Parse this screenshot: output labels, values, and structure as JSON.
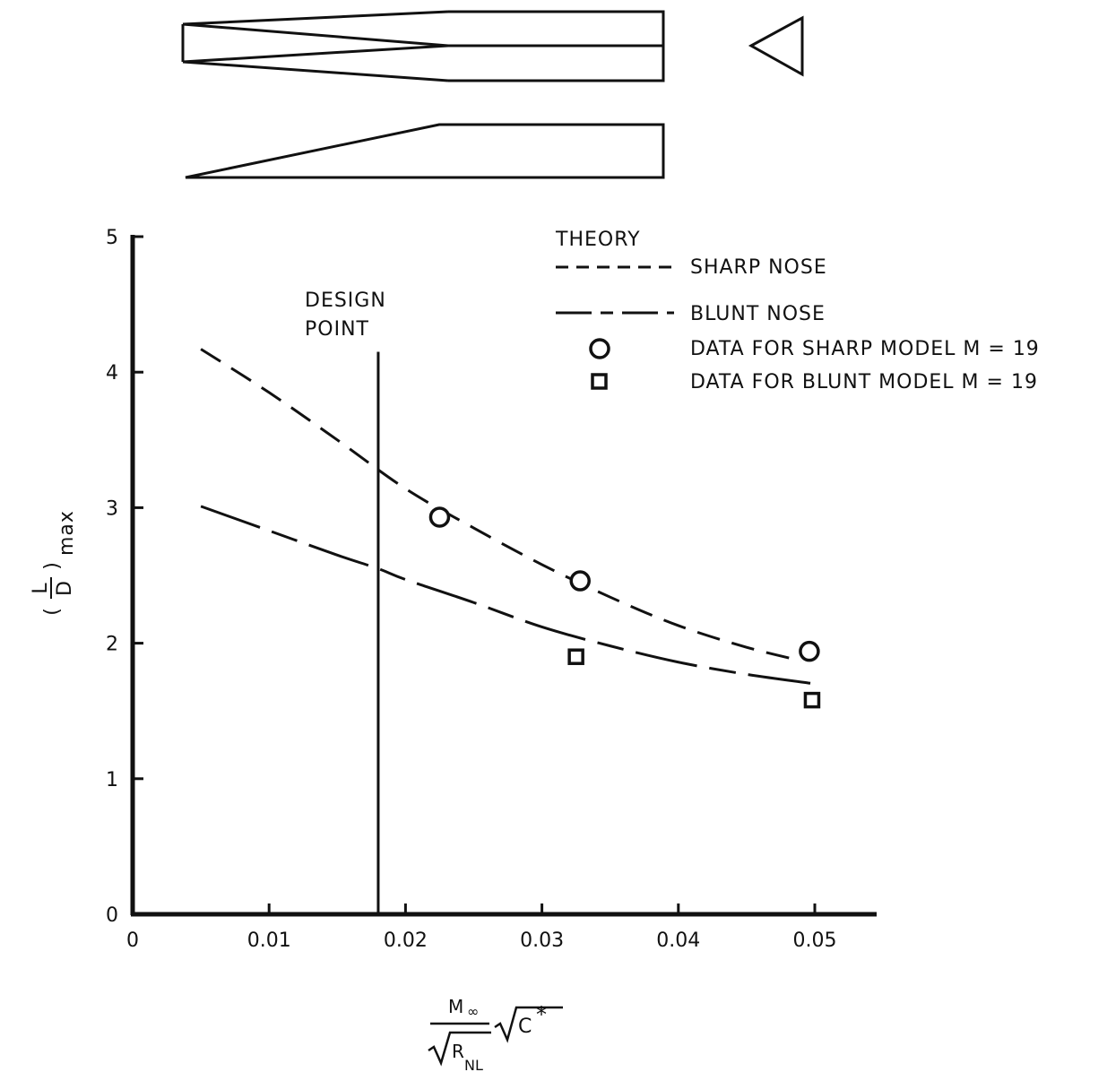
{
  "chart_data": {
    "type": "line",
    "xlim": [
      0,
      0.055
    ],
    "ylim": [
      0,
      5
    ],
    "x_ticks": [
      0,
      0.01,
      0.02,
      0.03,
      0.04,
      0.05
    ],
    "x_tick_labels": [
      "0",
      "0.01",
      "0.02",
      "0.03",
      "0.04",
      "0.05"
    ],
    "y_ticks": [
      0,
      1,
      2,
      3,
      4,
      5
    ],
    "y_tick_labels": [
      "0",
      "1",
      "2",
      "3",
      "4",
      "5"
    ],
    "ylabel": {
      "main": "(L/D)",
      "sub": "max",
      "num": "L",
      "den": "D"
    },
    "xlabel": {
      "num": "M",
      "num_sub": "∞",
      "den": "R",
      "den_sub": "NL",
      "tail": "C",
      "tail_sup": "*"
    },
    "grid": false,
    "legend": {
      "placement": "top-right",
      "title": "THEORY",
      "entries": [
        {
          "label": "SHARP NOSE",
          "marker": "dashed"
        },
        {
          "label": "BLUNT NOSE",
          "marker": "long-dash"
        },
        {
          "label": "DATA FOR SHARP MODEL M = 19",
          "marker": "circle"
        },
        {
          "label": "DATA FOR BLUNT MODEL M = 19",
          "marker": "square"
        }
      ]
    },
    "design_point": {
      "label_line1": "DESIGN",
      "label_line2": "POINT",
      "x": 0.018,
      "y_top": 4.15
    },
    "series": [
      {
        "name": "SHARP NOSE",
        "style": "dashed",
        "x": [
          0.005,
          0.01,
          0.015,
          0.02,
          0.025,
          0.03,
          0.035,
          0.04,
          0.045,
          0.049
        ],
        "y": [
          4.17,
          3.85,
          3.5,
          3.14,
          2.85,
          2.58,
          2.34,
          2.13,
          1.97,
          1.87
        ]
      },
      {
        "name": "BLUNT NOSE",
        "style": "long-dash",
        "x": [
          0.005,
          0.01,
          0.015,
          0.018,
          0.02,
          0.025,
          0.03,
          0.035,
          0.04,
          0.045,
          0.05
        ],
        "y": [
          3.01,
          2.83,
          2.65,
          2.55,
          2.47,
          2.3,
          2.12,
          1.98,
          1.86,
          1.77,
          1.7
        ]
      },
      {
        "name": "DATA FOR SHARP MODEL M = 19",
        "style": "circle",
        "x": [
          0.0225,
          0.0328,
          0.0496
        ],
        "y": [
          2.93,
          2.46,
          1.94
        ]
      },
      {
        "name": "DATA FOR BLUNT MODEL M = 19",
        "style": "square",
        "x": [
          0.0325,
          0.0498
        ],
        "y": [
          1.9,
          1.58
        ]
      }
    ]
  }
}
